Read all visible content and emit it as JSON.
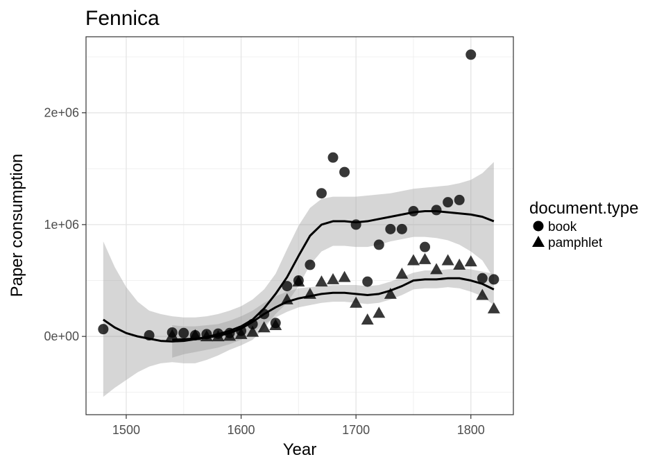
{
  "chart_data": {
    "type": "scatter",
    "title": "Fennica",
    "xlabel": "Year",
    "ylabel": "Paper consumption",
    "xlim": [
      1465,
      1837
    ],
    "ylim": [
      -700000,
      2680000
    ],
    "x_ticks": [
      1500,
      1600,
      1700,
      1800
    ],
    "x_tick_labels": [
      "1500",
      "1600",
      "1700",
      "1800"
    ],
    "y_ticks": [
      0,
      1000000,
      2000000
    ],
    "y_tick_labels": [
      "0e+00",
      "1e+06",
      "2e+06"
    ],
    "grid": true,
    "legend": {
      "title": "document.type",
      "placement": "right",
      "entries": [
        {
          "label": "book",
          "shape": "circle"
        },
        {
          "label": "pamphlet",
          "shape": "triangle"
        }
      ]
    },
    "series": [
      {
        "name": "book",
        "shape": "circle",
        "points": [
          [
            1480,
            65000
          ],
          [
            1520,
            10000
          ],
          [
            1540,
            35000
          ],
          [
            1550,
            30000
          ],
          [
            1560,
            10000
          ],
          [
            1570,
            20000
          ],
          [
            1580,
            25000
          ],
          [
            1590,
            30000
          ],
          [
            1600,
            50000
          ],
          [
            1610,
            110000
          ],
          [
            1620,
            200000
          ],
          [
            1630,
            120000
          ],
          [
            1640,
            450000
          ],
          [
            1650,
            500000
          ],
          [
            1660,
            640000
          ],
          [
            1670,
            1280000
          ],
          [
            1680,
            1600000
          ],
          [
            1690,
            1470000
          ],
          [
            1700,
            1000000
          ],
          [
            1710,
            490000
          ],
          [
            1720,
            820000
          ],
          [
            1730,
            960000
          ],
          [
            1740,
            960000
          ],
          [
            1750,
            1120000
          ],
          [
            1760,
            800000
          ],
          [
            1770,
            1130000
          ],
          [
            1780,
            1200000
          ],
          [
            1790,
            1220000
          ],
          [
            1800,
            2520000
          ],
          [
            1810,
            520000
          ],
          [
            1820,
            510000
          ]
        ],
        "smooth": [
          [
            1480,
            150000
          ],
          [
            1490,
            80000
          ],
          [
            1500,
            30000
          ],
          [
            1510,
            0
          ],
          [
            1520,
            -20000
          ],
          [
            1530,
            -40000
          ],
          [
            1540,
            -45000
          ],
          [
            1550,
            -40000
          ],
          [
            1560,
            -25000
          ],
          [
            1570,
            -5000
          ],
          [
            1580,
            20000
          ],
          [
            1590,
            50000
          ],
          [
            1600,
            90000
          ],
          [
            1610,
            150000
          ],
          [
            1620,
            250000
          ],
          [
            1630,
            380000
          ],
          [
            1640,
            530000
          ],
          [
            1650,
            720000
          ],
          [
            1660,
            900000
          ],
          [
            1670,
            1000000
          ],
          [
            1680,
            1030000
          ],
          [
            1690,
            1030000
          ],
          [
            1700,
            1020000
          ],
          [
            1710,
            1030000
          ],
          [
            1720,
            1050000
          ],
          [
            1730,
            1070000
          ],
          [
            1740,
            1090000
          ],
          [
            1750,
            1110000
          ],
          [
            1760,
            1120000
          ],
          [
            1770,
            1120000
          ],
          [
            1780,
            1110000
          ],
          [
            1790,
            1100000
          ],
          [
            1800,
            1090000
          ],
          [
            1810,
            1070000
          ],
          [
            1820,
            1030000
          ]
        ],
        "band_upper": [
          [
            1480,
            850000
          ],
          [
            1490,
            620000
          ],
          [
            1500,
            440000
          ],
          [
            1510,
            310000
          ],
          [
            1520,
            230000
          ],
          [
            1530,
            200000
          ],
          [
            1540,
            180000
          ],
          [
            1550,
            170000
          ],
          [
            1560,
            170000
          ],
          [
            1570,
            180000
          ],
          [
            1580,
            200000
          ],
          [
            1590,
            230000
          ],
          [
            1600,
            270000
          ],
          [
            1610,
            330000
          ],
          [
            1620,
            420000
          ],
          [
            1630,
            560000
          ],
          [
            1640,
            780000
          ],
          [
            1650,
            990000
          ],
          [
            1660,
            1150000
          ],
          [
            1670,
            1230000
          ],
          [
            1680,
            1250000
          ],
          [
            1690,
            1250000
          ],
          [
            1700,
            1250000
          ],
          [
            1710,
            1260000
          ],
          [
            1720,
            1270000
          ],
          [
            1730,
            1280000
          ],
          [
            1740,
            1300000
          ],
          [
            1750,
            1320000
          ],
          [
            1760,
            1330000
          ],
          [
            1770,
            1340000
          ],
          [
            1780,
            1350000
          ],
          [
            1790,
            1370000
          ],
          [
            1800,
            1400000
          ],
          [
            1810,
            1460000
          ],
          [
            1820,
            1560000
          ]
        ],
        "band_lower": [
          [
            1480,
            -540000
          ],
          [
            1490,
            -460000
          ],
          [
            1500,
            -390000
          ],
          [
            1510,
            -320000
          ],
          [
            1520,
            -270000
          ],
          [
            1530,
            -240000
          ],
          [
            1540,
            -230000
          ],
          [
            1550,
            -240000
          ],
          [
            1560,
            -240000
          ],
          [
            1570,
            -210000
          ],
          [
            1580,
            -170000
          ],
          [
            1590,
            -120000
          ],
          [
            1600,
            -80000
          ],
          [
            1610,
            -30000
          ],
          [
            1620,
            70000
          ],
          [
            1630,
            200000
          ],
          [
            1640,
            300000
          ],
          [
            1650,
            450000
          ],
          [
            1660,
            640000
          ],
          [
            1670,
            760000
          ],
          [
            1680,
            810000
          ],
          [
            1690,
            810000
          ],
          [
            1700,
            800000
          ],
          [
            1710,
            800000
          ],
          [
            1720,
            820000
          ],
          [
            1730,
            850000
          ],
          [
            1740,
            870000
          ],
          [
            1750,
            890000
          ],
          [
            1760,
            890000
          ],
          [
            1770,
            880000
          ],
          [
            1780,
            860000
          ],
          [
            1790,
            820000
          ],
          [
            1800,
            760000
          ],
          [
            1810,
            680000
          ],
          [
            1820,
            520000
          ]
        ]
      },
      {
        "name": "pamphlet",
        "shape": "triangle",
        "points": [
          [
            1540,
            10000
          ],
          [
            1560,
            10000
          ],
          [
            1570,
            0
          ],
          [
            1580,
            0
          ],
          [
            1590,
            5000
          ],
          [
            1600,
            20000
          ],
          [
            1610,
            40000
          ],
          [
            1620,
            80000
          ],
          [
            1630,
            100000
          ],
          [
            1640,
            330000
          ],
          [
            1650,
            490000
          ],
          [
            1660,
            380000
          ],
          [
            1670,
            490000
          ],
          [
            1680,
            510000
          ],
          [
            1690,
            530000
          ],
          [
            1700,
            300000
          ],
          [
            1710,
            150000
          ],
          [
            1720,
            210000
          ],
          [
            1730,
            380000
          ],
          [
            1740,
            560000
          ],
          [
            1750,
            680000
          ],
          [
            1760,
            690000
          ],
          [
            1770,
            600000
          ],
          [
            1780,
            680000
          ],
          [
            1790,
            640000
          ],
          [
            1800,
            670000
          ],
          [
            1810,
            370000
          ],
          [
            1820,
            250000
          ]
        ],
        "smooth": [
          [
            1540,
            -30000
          ],
          [
            1550,
            -25000
          ],
          [
            1560,
            -20000
          ],
          [
            1570,
            -10000
          ],
          [
            1580,
            5000
          ],
          [
            1590,
            30000
          ],
          [
            1600,
            70000
          ],
          [
            1610,
            130000
          ],
          [
            1620,
            200000
          ],
          [
            1630,
            260000
          ],
          [
            1640,
            310000
          ],
          [
            1650,
            340000
          ],
          [
            1660,
            360000
          ],
          [
            1670,
            380000
          ],
          [
            1680,
            390000
          ],
          [
            1690,
            390000
          ],
          [
            1700,
            380000
          ],
          [
            1710,
            370000
          ],
          [
            1720,
            380000
          ],
          [
            1730,
            410000
          ],
          [
            1740,
            450000
          ],
          [
            1750,
            500000
          ],
          [
            1760,
            510000
          ],
          [
            1770,
            510000
          ],
          [
            1780,
            520000
          ],
          [
            1790,
            520000
          ],
          [
            1800,
            500000
          ],
          [
            1810,
            470000
          ],
          [
            1820,
            420000
          ]
        ],
        "band_upper": [
          [
            1540,
            100000
          ],
          [
            1550,
            90000
          ],
          [
            1560,
            90000
          ],
          [
            1570,
            100000
          ],
          [
            1580,
            110000
          ],
          [
            1590,
            140000
          ],
          [
            1600,
            180000
          ],
          [
            1610,
            230000
          ],
          [
            1620,
            300000
          ],
          [
            1630,
            360000
          ],
          [
            1640,
            400000
          ],
          [
            1650,
            430000
          ],
          [
            1660,
            440000
          ],
          [
            1670,
            450000
          ],
          [
            1680,
            460000
          ],
          [
            1690,
            460000
          ],
          [
            1700,
            460000
          ],
          [
            1710,
            450000
          ],
          [
            1720,
            460000
          ],
          [
            1730,
            490000
          ],
          [
            1740,
            530000
          ],
          [
            1750,
            570000
          ],
          [
            1760,
            590000
          ],
          [
            1770,
            590000
          ],
          [
            1780,
            600000
          ],
          [
            1790,
            610000
          ],
          [
            1800,
            600000
          ],
          [
            1810,
            580000
          ],
          [
            1820,
            560000
          ]
        ],
        "band_lower": [
          [
            1540,
            -190000
          ],
          [
            1550,
            -160000
          ],
          [
            1560,
            -140000
          ],
          [
            1570,
            -120000
          ],
          [
            1580,
            -100000
          ],
          [
            1590,
            -70000
          ],
          [
            1600,
            -30000
          ],
          [
            1610,
            30000
          ],
          [
            1620,
            110000
          ],
          [
            1630,
            170000
          ],
          [
            1640,
            220000
          ],
          [
            1650,
            260000
          ],
          [
            1660,
            280000
          ],
          [
            1670,
            300000
          ],
          [
            1680,
            310000
          ],
          [
            1690,
            310000
          ],
          [
            1700,
            300000
          ],
          [
            1710,
            290000
          ],
          [
            1720,
            300000
          ],
          [
            1730,
            330000
          ],
          [
            1740,
            370000
          ],
          [
            1750,
            420000
          ],
          [
            1760,
            430000
          ],
          [
            1770,
            430000
          ],
          [
            1780,
            440000
          ],
          [
            1790,
            430000
          ],
          [
            1800,
            400000
          ],
          [
            1810,
            360000
          ],
          [
            1820,
            280000
          ]
        ]
      }
    ]
  }
}
